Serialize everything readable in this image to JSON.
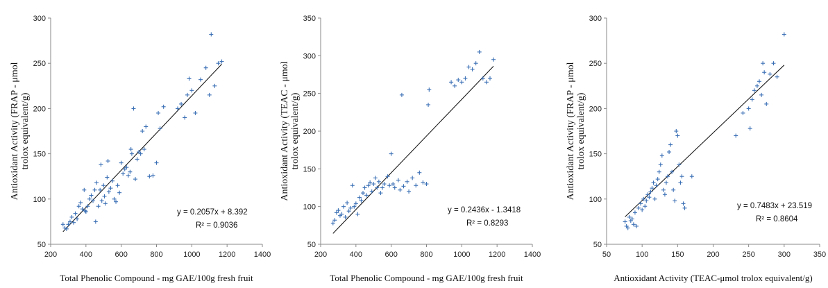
{
  "chart_data": [
    {
      "type": "scatter",
      "title": "",
      "xlabel": "Total Phenolic Compound - mg GAE/100g fresh fruit",
      "ylabel_line1": "Antioxidant Activity (FRAP - μmol",
      "ylabel_line2": "trolox equivalent/g)",
      "xlim": [
        200,
        1400
      ],
      "ylim": [
        50,
        300
      ],
      "xticks": [
        200,
        400,
        600,
        800,
        1000,
        1200,
        1400
      ],
      "yticks": [
        50,
        100,
        150,
        200,
        250,
        300
      ],
      "equation": "y = 0.2057x + 8.392",
      "r2": "R² = 0.9036",
      "trendline": {
        "slope": 0.2057,
        "intercept": 8.392,
        "x_start": 270,
        "x_end": 1170
      },
      "points": [
        [
          270,
          72
        ],
        [
          280,
          68
        ],
        [
          290,
          67
        ],
        [
          300,
          72
        ],
        [
          310,
          75
        ],
        [
          320,
          80
        ],
        [
          330,
          74
        ],
        [
          340,
          84
        ],
        [
          350,
          78
        ],
        [
          360,
          92
        ],
        [
          370,
          96
        ],
        [
          380,
          89
        ],
        [
          390,
          110
        ],
        [
          395,
          87
        ],
        [
          400,
          86
        ],
        [
          410,
          92
        ],
        [
          420,
          100
        ],
        [
          430,
          104
        ],
        [
          440,
          98
        ],
        [
          450,
          110
        ],
        [
          455,
          75
        ],
        [
          460,
          118
        ],
        [
          470,
          92
        ],
        [
          480,
          110
        ],
        [
          485,
          138
        ],
        [
          490,
          98
        ],
        [
          500,
          115
        ],
        [
          505,
          103
        ],
        [
          510,
          95
        ],
        [
          520,
          124
        ],
        [
          525,
          142
        ],
        [
          530,
          108
        ],
        [
          540,
          112
        ],
        [
          550,
          120
        ],
        [
          560,
          100
        ],
        [
          570,
          97
        ],
        [
          580,
          115
        ],
        [
          590,
          107
        ],
        [
          600,
          140
        ],
        [
          610,
          128
        ],
        [
          620,
          133
        ],
        [
          630,
          135
        ],
        [
          640,
          126
        ],
        [
          650,
          130
        ],
        [
          655,
          155
        ],
        [
          660,
          150
        ],
        [
          670,
          200
        ],
        [
          680,
          122
        ],
        [
          690,
          144
        ],
        [
          700,
          152
        ],
        [
          710,
          150
        ],
        [
          720,
          175
        ],
        [
          730,
          155
        ],
        [
          740,
          180
        ],
        [
          760,
          125
        ],
        [
          780,
          126
        ],
        [
          800,
          140
        ],
        [
          810,
          195
        ],
        [
          820,
          178
        ],
        [
          840,
          202
        ],
        [
          920,
          200
        ],
        [
          940,
          205
        ],
        [
          960,
          190
        ],
        [
          975,
          215
        ],
        [
          985,
          233
        ],
        [
          1000,
          220
        ],
        [
          1020,
          195
        ],
        [
          1050,
          232
        ],
        [
          1080,
          245
        ],
        [
          1100,
          215
        ],
        [
          1110,
          282
        ],
        [
          1130,
          225
        ],
        [
          1150,
          250
        ],
        [
          1170,
          252
        ]
      ]
    },
    {
      "type": "scatter",
      "title": "",
      "xlabel": "Total Phenolic Compound - mg GAE/100g fresh fruit",
      "ylabel_line1": "Antioxidant Activity (TEAC - μmol",
      "ylabel_line2": "trolox equivalent/g)",
      "xlim": [
        200,
        1400
      ],
      "ylim": [
        50,
        350
      ],
      "xticks": [
        200,
        400,
        600,
        800,
        1000,
        1200,
        1400
      ],
      "yticks": [
        50,
        100,
        150,
        200,
        250,
        300,
        350
      ],
      "equation": "y = 0.2436x - 1.3418",
      "r2": "R² = 0.8293",
      "trendline": {
        "slope": 0.2436,
        "intercept": -1.3418,
        "x_start": 270,
        "x_end": 1180
      },
      "points": [
        [
          270,
          78
        ],
        [
          280,
          82
        ],
        [
          290,
          92
        ],
        [
          300,
          95
        ],
        [
          310,
          88
        ],
        [
          320,
          90
        ],
        [
          330,
          100
        ],
        [
          340,
          86
        ],
        [
          350,
          105
        ],
        [
          360,
          94
        ],
        [
          370,
          98
        ],
        [
          380,
          128
        ],
        [
          390,
          100
        ],
        [
          400,
          104
        ],
        [
          410,
          90
        ],
        [
          420,
          112
        ],
        [
          430,
          108
        ],
        [
          440,
          118
        ],
        [
          450,
          125
        ],
        [
          460,
          115
        ],
        [
          470,
          128
        ],
        [
          480,
          132
        ],
        [
          490,
          120
        ],
        [
          500,
          130
        ],
        [
          510,
          138
        ],
        [
          520,
          125
        ],
        [
          530,
          133
        ],
        [
          540,
          118
        ],
        [
          550,
          125
        ],
        [
          560,
          130
        ],
        [
          580,
          140
        ],
        [
          590,
          128
        ],
        [
          600,
          170
        ],
        [
          610,
          130
        ],
        [
          620,
          125
        ],
        [
          640,
          135
        ],
        [
          650,
          122
        ],
        [
          660,
          248
        ],
        [
          670,
          127
        ],
        [
          690,
          133
        ],
        [
          700,
          120
        ],
        [
          720,
          138
        ],
        [
          740,
          128
        ],
        [
          760,
          145
        ],
        [
          780,
          132
        ],
        [
          800,
          130
        ],
        [
          810,
          235
        ],
        [
          815,
          255
        ],
        [
          940,
          265
        ],
        [
          960,
          260
        ],
        [
          980,
          268
        ],
        [
          1000,
          265
        ],
        [
          1020,
          270
        ],
        [
          1040,
          285
        ],
        [
          1060,
          282
        ],
        [
          1080,
          290
        ],
        [
          1100,
          305
        ],
        [
          1120,
          270
        ],
        [
          1140,
          265
        ],
        [
          1160,
          270
        ],
        [
          1180,
          295
        ]
      ]
    },
    {
      "type": "scatter",
      "title": "",
      "xlabel": "Antioxidant Activity (TEAC-μmol trolox equivalent/g)",
      "ylabel_line1": "Antioxidant Activity (FRAP - μmol",
      "ylabel_line2": "trolox equivalent/g)",
      "xlim": [
        50,
        350
      ],
      "ylim": [
        50,
        300
      ],
      "xticks": [
        50,
        100,
        150,
        200,
        250,
        300,
        350
      ],
      "yticks": [
        50,
        100,
        150,
        200,
        250,
        300
      ],
      "equation": "y = 0.7483x + 23.519",
      "r2": "R² = 0.8604",
      "trendline": {
        "slope": 0.7483,
        "intercept": 23.519,
        "x_start": 76,
        "x_end": 300
      },
      "points": [
        [
          76,
          75
        ],
        [
          78,
          70
        ],
        [
          80,
          68
        ],
        [
          82,
          80
        ],
        [
          84,
          76
        ],
        [
          86,
          78
        ],
        [
          88,
          72
        ],
        [
          90,
          85
        ],
        [
          92,
          70
        ],
        [
          95,
          90
        ],
        [
          98,
          95
        ],
        [
          100,
          88
        ],
        [
          102,
          100
        ],
        [
          104,
          92
        ],
        [
          106,
          98
        ],
        [
          108,
          105
        ],
        [
          110,
          102
        ],
        [
          112,
          108
        ],
        [
          114,
          112
        ],
        [
          116,
          118
        ],
        [
          118,
          100
        ],
        [
          120,
          115
        ],
        [
          122,
          122
        ],
        [
          124,
          130
        ],
        [
          126,
          138
        ],
        [
          128,
          148
        ],
        [
          130,
          110
        ],
        [
          132,
          105
        ],
        [
          134,
          118
        ],
        [
          136,
          125
        ],
        [
          138,
          152
        ],
        [
          140,
          160
        ],
        [
          142,
          130
        ],
        [
          144,
          110
        ],
        [
          146,
          98
        ],
        [
          148,
          175
        ],
        [
          150,
          170
        ],
        [
          152,
          138
        ],
        [
          154,
          118
        ],
        [
          156,
          125
        ],
        [
          158,
          95
        ],
        [
          160,
          90
        ],
        [
          170,
          125
        ],
        [
          232,
          170
        ],
        [
          242,
          195
        ],
        [
          250,
          200
        ],
        [
          252,
          178
        ],
        [
          255,
          210
        ],
        [
          258,
          220
        ],
        [
          262,
          225
        ],
        [
          265,
          230
        ],
        [
          268,
          215
        ],
        [
          270,
          250
        ],
        [
          272,
          240
        ],
        [
          275,
          205
        ],
        [
          280,
          238
        ],
        [
          285,
          250
        ],
        [
          290,
          235
        ],
        [
          300,
          282
        ]
      ]
    }
  ]
}
